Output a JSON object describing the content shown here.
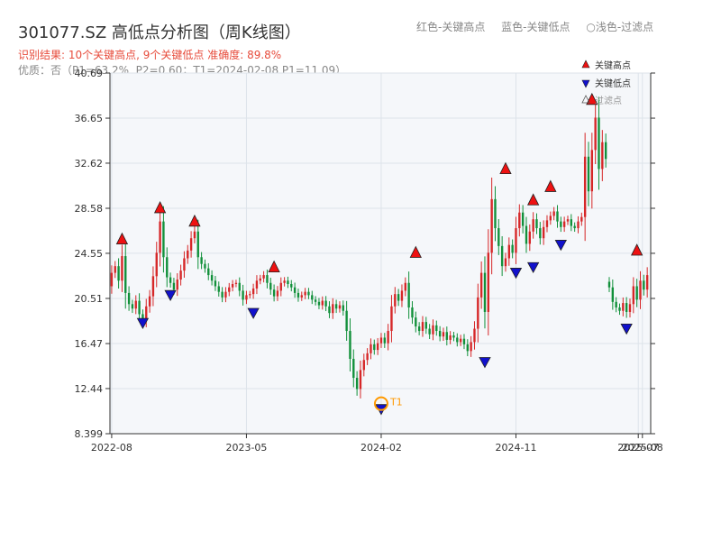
{
  "header": {
    "title": "301077.SZ 高低点分析图（周K线图）",
    "subtitle": "识别结果: 10个关键高点, 9个关键低点  准确度: 89.8%",
    "subtitle2": "优质：否（P1=63.2%, P2=0.60；T1=2024-02-08 P1=11.09）"
  },
  "legend_top": {
    "high": "红色-关键高点",
    "low": "蓝色-关键低点",
    "filter": "○浅色-过滤点"
  },
  "legend_inner": [
    "关键高点",
    "关键低点",
    "过滤点"
  ],
  "colors": {
    "up": "#d62728",
    "down": "#11903a",
    "high_marker": "#ee1111",
    "low_marker": "#1111cc",
    "t1_ring": "#ff9900",
    "plot_bg": "#f5f7fa",
    "grid": "#dde3ea"
  },
  "chart_data": {
    "type": "candlestick",
    "y_ticks": [
      "40.69",
      "36.65",
      "32.62",
      "28.58",
      "24.55",
      "20.51",
      "16.47",
      "12.44",
      "8.399"
    ],
    "ylim": [
      8.399,
      40.69
    ],
    "x_ticks": [
      {
        "label": "2022-08",
        "t": 0
      },
      {
        "label": "2023-05",
        "t": 39
      },
      {
        "label": "2024-02",
        "t": 78
      },
      {
        "label": "2024-11",
        "t": 117
      },
      {
        "label": "2025-07",
        "t": 152.4
      },
      {
        "label": "2025-08",
        "t": 153.6
      }
    ],
    "xlim": [
      -0.5,
      156
    ],
    "series": [
      {
        "segment": 1,
        "start_t": 0,
        "closes": [
          22.8,
          23.4,
          22.1,
          24.3,
          21.0,
          20.0,
          19.6,
          20.3,
          19.1,
          18.6,
          19.8,
          20.7,
          22.5,
          24.6,
          27.4,
          24.2,
          22.4,
          21.9,
          21.3,
          22.2,
          23.0,
          24.1,
          24.8,
          25.9,
          26.5,
          24.2,
          23.6,
          23.2,
          22.6,
          22.1,
          21.6,
          21.1,
          20.6,
          21.1,
          21.5,
          21.8,
          21.9,
          21.2,
          20.4,
          20.8,
          20.9,
          21.4,
          22.1,
          22.3,
          22.6,
          21.9,
          21.3,
          20.7,
          21.2,
          21.9,
          22.1,
          21.8,
          21.5,
          21.0,
          20.6,
          20.8,
          21.1,
          20.8,
          20.4,
          20.2,
          19.9,
          20.3,
          19.8,
          19.2,
          20.0,
          19.6,
          19.9,
          19.4,
          17.6,
          15.1,
          13.4,
          12.4,
          14.1,
          15.0,
          15.6,
          16.4,
          15.9,
          16.5,
          17.0,
          16.5,
          17.6,
          19.8,
          20.9,
          20.3,
          21.2,
          21.9,
          19.7,
          18.8,
          18.0,
          17.6,
          18.4,
          17.8,
          17.3,
          18.1,
          17.6,
          17.1,
          17.5,
          16.8,
          17.2,
          17.0,
          16.6,
          16.9,
          16.4,
          15.8,
          16.6,
          17.8,
          20.6,
          22.8,
          19.3,
          24.6,
          29.4,
          26.8,
          25.2,
          23.4,
          24.1,
          25.3,
          24.6,
          26.8,
          28.2,
          27.0,
          25.4,
          26.5,
          27.6,
          26.8,
          25.9,
          26.9,
          27.5,
          27.9,
          28.3,
          27.4,
          26.9,
          27.4,
          27.6,
          27.0,
          26.8,
          27.4,
          27.8,
          33.2,
          30.1,
          33.8,
          36.7,
          32.1,
          34.5,
          33.0
        ],
        "open_seed": 21.6
      },
      {
        "segment": 2,
        "start_t": 144,
        "closes": [
          21.5,
          20.2,
          19.7,
          19.4,
          20.1,
          19.3,
          20.0,
          21.6,
          20.4,
          22.1,
          21.3,
          22.6
        ],
        "open_seed": 22.0
      }
    ],
    "highs": [
      {
        "t": 3,
        "price": 25.3
      },
      {
        "t": 14,
        "price": 28.1
      },
      {
        "t": 24,
        "price": 26.9
      },
      {
        "t": 47,
        "price": 22.8
      },
      {
        "t": 88,
        "price": 24.1
      },
      {
        "t": 114,
        "price": 31.6
      },
      {
        "t": 122,
        "price": 28.8
      },
      {
        "t": 127,
        "price": 30.0
      },
      {
        "t": 139,
        "price": 37.8
      },
      {
        "t": 152,
        "price": 24.3
      }
    ],
    "lows": [
      {
        "t": 9,
        "price": 18.8
      },
      {
        "t": 17,
        "price": 21.3
      },
      {
        "t": 41,
        "price": 19.7
      },
      {
        "t": 78,
        "price": 11.09
      },
      {
        "t": 108,
        "price": 15.3
      },
      {
        "t": 117,
        "price": 23.3
      },
      {
        "t": 122,
        "price": 23.8
      },
      {
        "t": 130,
        "price": 25.8
      },
      {
        "t": 149,
        "price": 18.3
      }
    ],
    "t1": {
      "t": 78,
      "price": 11.09,
      "label": "T1"
    }
  }
}
